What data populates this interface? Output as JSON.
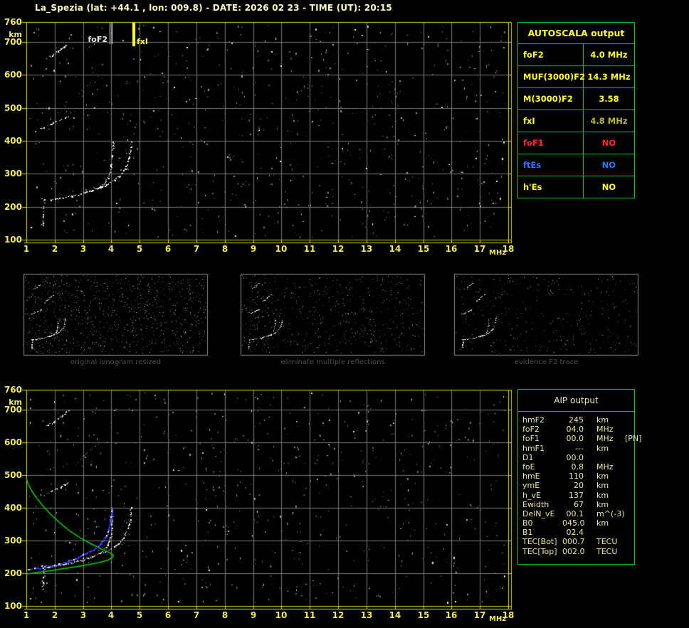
{
  "title": "La_Spezia (lat: +44.1 , lon: 009.8) - DATE: 2026 02 23 - TIME (UT): 20:15",
  "colors": {
    "pale_title": "#ffffc6",
    "axis_yellow": "#f0ec62",
    "frame_yellow": "#d8d800",
    "grid_gray": "#7a7a7a",
    "panel_green": "#00c42c",
    "bright_yellow": "#ffff2e",
    "dim_yellow": "#b9b92a",
    "red": "#ff2a2a",
    "blue": "#2a7bff",
    "aip_text": "#e9e9a3",
    "green_curve": "#00d400",
    "blue_fit": "#2e3aff",
    "marker_white": "#e8e8e8",
    "caption_gray": "#4f4f4f"
  },
  "autoscala": {
    "title": "AUTOSCALA output",
    "rows": [
      {
        "label": "foF2",
        "value": "4.0 MHz",
        "label_color": "bright_yellow",
        "value_color": "bright_yellow"
      },
      {
        "label": "MUF(3000)F2",
        "value": "14.3 MHz",
        "label_color": "bright_yellow",
        "value_color": "bright_yellow"
      },
      {
        "label": "M(3000)F2",
        "value": "3.58",
        "label_color": "bright_yellow",
        "value_color": "bright_yellow"
      },
      {
        "label": "fxI",
        "value": "4.8 MHz",
        "label_color": "bright_yellow",
        "value_color": "dim_yellow"
      },
      {
        "label": "foF1",
        "value": "NO",
        "label_color": "red",
        "value_color": "red"
      },
      {
        "label": "ftEs",
        "value": "NO",
        "label_color": "blue",
        "value_color": "blue"
      },
      {
        "label": "h'Es",
        "value": "NO",
        "label_color": "bright_yellow",
        "value_color": "bright_yellow"
      }
    ]
  },
  "aip": {
    "title": "AIP output",
    "rows": [
      {
        "label": "hmF2",
        "value": "245",
        "unit": "km",
        "extra": ""
      },
      {
        "label": "foF2",
        "value": "04.0",
        "unit": "MHz",
        "extra": ""
      },
      {
        "label": "foF1",
        "value": "00.0",
        "unit": "MHz",
        "extra": "[PN]"
      },
      {
        "label": "hmF1",
        "value": "---",
        "unit": "km",
        "extra": ""
      },
      {
        "label": "D1",
        "value": "00.0",
        "unit": "",
        "extra": ""
      },
      {
        "label": "foE",
        "value": "0.8",
        "unit": "MHz",
        "extra": ""
      },
      {
        "label": "hmE",
        "value": "110",
        "unit": "km",
        "extra": ""
      },
      {
        "label": "ymE",
        "value": "20",
        "unit": "km",
        "extra": ""
      },
      {
        "label": "h_vE",
        "value": "137",
        "unit": "km",
        "extra": ""
      },
      {
        "label": "Ewidth",
        "value": "67",
        "unit": "km",
        "extra": ""
      },
      {
        "label": "DelN_vE",
        "value": "00.1",
        "unit": "m^(-3)",
        "extra": ""
      },
      {
        "label": "B0",
        "value": "045.0",
        "unit": "km",
        "extra": ""
      },
      {
        "label": "B1",
        "value": "02.4",
        "unit": "",
        "extra": ""
      },
      {
        "label": "TEC[Bot]",
        "value": "000.7",
        "unit": "TECU",
        "extra": ""
      },
      {
        "label": "TEC[Top]",
        "value": "002.0",
        "unit": "TECU",
        "extra": ""
      }
    ]
  },
  "thumbnails": [
    {
      "caption": "original ionogram resized",
      "noise_count": 950,
      "seed": 11
    },
    {
      "caption": "eliminate multiple reflections",
      "noise_count": 560,
      "seed": 22
    },
    {
      "caption": "evidence F2 trace",
      "noise_count": 330,
      "seed": 33
    }
  ],
  "chart_data": {
    "type": "scatter",
    "title": "Ionogram: virtual height vs sounding frequency",
    "x_axis": {
      "label": "MHz",
      "range": [
        1,
        18
      ],
      "ticks": [
        1,
        2,
        3,
        4,
        5,
        6,
        7,
        8,
        9,
        10,
        11,
        12,
        13,
        14,
        15,
        16,
        17,
        18
      ]
    },
    "y_axis": {
      "label": "km",
      "range": [
        100,
        760
      ],
      "ticks": [
        760,
        700,
        600,
        500,
        400,
        300,
        200,
        100
      ]
    },
    "grid": true,
    "traces": {
      "f2_ordinary": [
        [
          1.52,
          224
        ],
        [
          1.62,
          222
        ],
        [
          1.72,
          221
        ],
        [
          1.85,
          222
        ],
        [
          2.0,
          224
        ],
        [
          2.15,
          226
        ],
        [
          2.3,
          228
        ],
        [
          2.45,
          231
        ],
        [
          2.6,
          233
        ],
        [
          2.75,
          236
        ],
        [
          2.9,
          239
        ],
        [
          3.05,
          243
        ],
        [
          3.2,
          247
        ],
        [
          3.35,
          252
        ],
        [
          3.5,
          258
        ],
        [
          3.62,
          264
        ],
        [
          3.72,
          271
        ],
        [
          3.8,
          279
        ],
        [
          3.87,
          289
        ],
        [
          3.92,
          300
        ],
        [
          3.96,
          314
        ],
        [
          3.99,
          332
        ],
        [
          4.01,
          352
        ],
        [
          4.03,
          374
        ],
        [
          4.05,
          398
        ]
      ],
      "f2_extraordinary": [
        [
          3.0,
          244
        ],
        [
          3.2,
          249
        ],
        [
          3.4,
          254
        ],
        [
          3.6,
          260
        ],
        [
          3.8,
          267
        ],
        [
          3.95,
          274
        ],
        [
          4.1,
          282
        ],
        [
          4.25,
          292
        ],
        [
          4.37,
          303
        ],
        [
          4.47,
          316
        ],
        [
          4.55,
          331
        ],
        [
          4.61,
          348
        ],
        [
          4.65,
          366
        ],
        [
          4.68,
          384
        ],
        [
          4.7,
          400
        ]
      ],
      "second_hop": [
        [
          1.45,
          437
        ],
        [
          1.6,
          442
        ],
        [
          1.75,
          447
        ],
        [
          1.9,
          452
        ],
        [
          2.05,
          458
        ],
        [
          2.2,
          464
        ],
        [
          2.35,
          471
        ],
        [
          2.5,
          478
        ]
      ],
      "second_hop_faint": [
        [
          2.85,
          546
        ],
        [
          3.0,
          557
        ],
        [
          3.15,
          568
        ],
        [
          3.3,
          579
        ],
        [
          3.45,
          590
        ],
        [
          3.6,
          601
        ]
      ],
      "third_hop": [
        [
          1.72,
          651
        ],
        [
          1.85,
          658
        ],
        [
          1.98,
          665
        ],
        [
          2.1,
          672
        ],
        [
          2.22,
          680
        ],
        [
          2.34,
          688
        ],
        [
          2.46,
          697
        ]
      ],
      "e_region_vertical": [
        [
          1.57,
          143
        ],
        [
          1.57,
          152
        ],
        [
          1.57,
          161
        ],
        [
          1.57,
          170
        ],
        [
          1.57,
          179
        ],
        [
          1.6,
          207
        ],
        [
          1.63,
          213
        ]
      ]
    },
    "top_plot": {
      "markers": [
        {
          "name": "foF2",
          "freq_mhz": 4.0,
          "color": "marker_white"
        },
        {
          "name": "fxI",
          "freq_mhz": 4.8,
          "color": "bright_yellow"
        }
      ],
      "noise_count": 720,
      "noise_seed": 101
    },
    "bottom_plot": {
      "green_profile": [
        [
          1.0,
          488
        ],
        [
          1.08,
          470
        ],
        [
          1.2,
          450
        ],
        [
          1.38,
          428
        ],
        [
          1.6,
          404
        ],
        [
          1.88,
          378
        ],
        [
          2.2,
          352
        ],
        [
          2.55,
          328
        ],
        [
          2.9,
          308
        ],
        [
          3.25,
          291
        ],
        [
          3.55,
          278
        ],
        [
          3.8,
          268
        ],
        [
          3.98,
          261
        ],
        [
          4.07,
          255
        ],
        [
          4.03,
          247
        ],
        [
          3.88,
          240
        ],
        [
          3.6,
          233
        ],
        [
          3.25,
          227
        ],
        [
          2.85,
          221
        ],
        [
          2.4,
          215
        ],
        [
          1.95,
          209
        ],
        [
          1.55,
          204
        ],
        [
          1.2,
          200
        ],
        [
          1.0,
          197
        ]
      ],
      "blue_fit": [
        [
          1.02,
          213
        ],
        [
          1.15,
          214
        ],
        [
          1.3,
          215
        ],
        [
          1.45,
          216
        ],
        [
          1.6,
          218
        ],
        [
          1.75,
          221
        ],
        [
          1.9,
          224
        ],
        [
          2.05,
          227
        ],
        [
          2.2,
          231
        ],
        [
          2.35,
          235
        ],
        [
          2.5,
          239
        ],
        [
          2.65,
          244
        ],
        [
          2.8,
          249
        ],
        [
          2.95,
          255
        ],
        [
          3.1,
          261
        ],
        [
          3.25,
          268
        ],
        [
          3.4,
          276
        ],
        [
          3.52,
          284
        ],
        [
          3.63,
          293
        ],
        [
          3.72,
          303
        ],
        [
          3.8,
          314
        ],
        [
          3.86,
          327
        ],
        [
          3.91,
          341
        ],
        [
          3.95,
          357
        ],
        [
          3.98,
          374
        ],
        [
          4.0,
          391
        ],
        [
          4.01,
          400
        ]
      ],
      "noise_count": 700,
      "noise_seed": 202
    }
  }
}
